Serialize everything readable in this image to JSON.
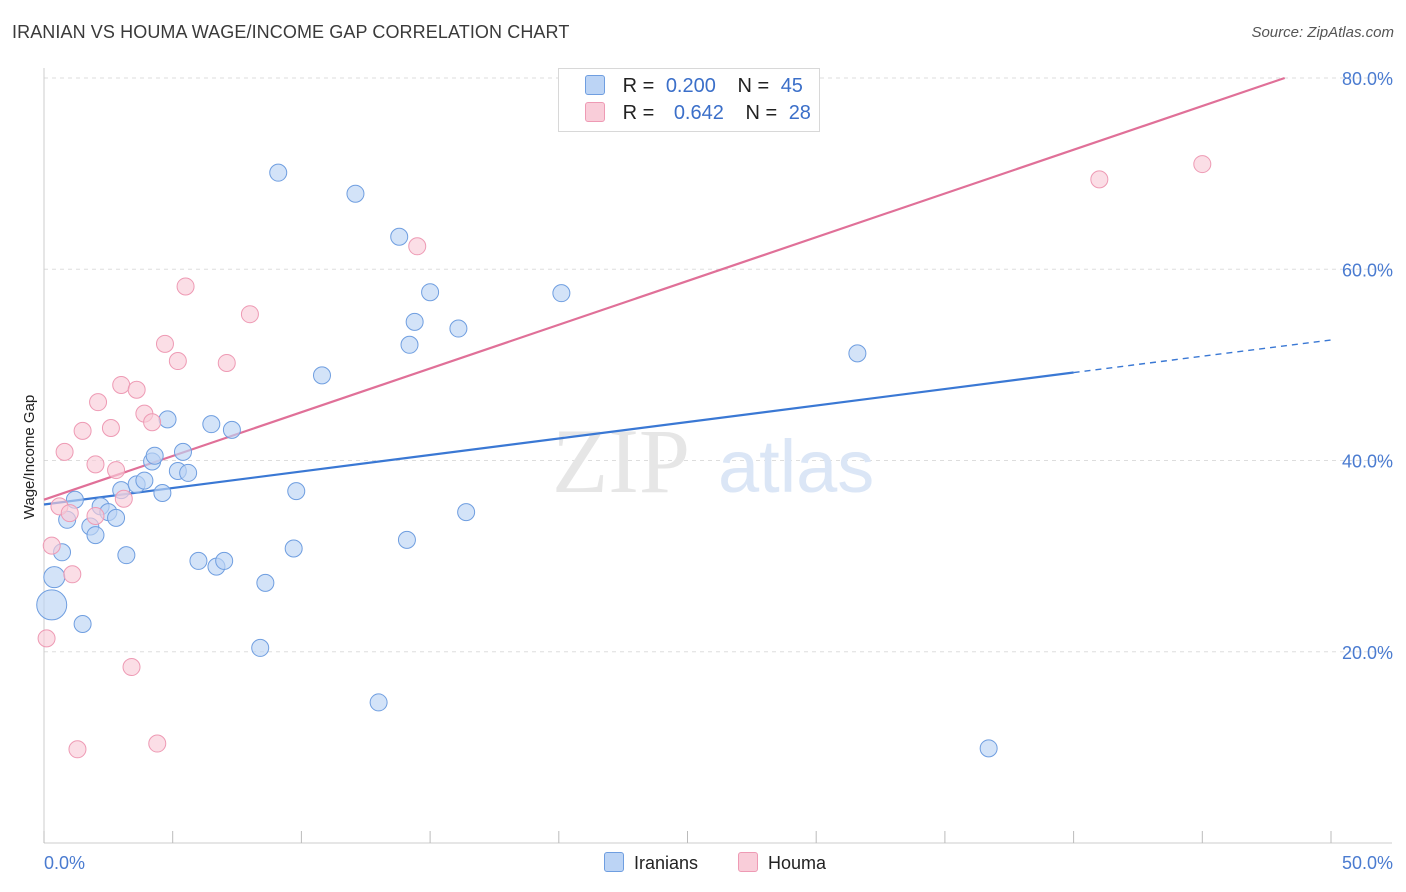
{
  "header": {
    "title": "IRANIAN VS HOUMA WAGE/INCOME GAP CORRELATION CHART",
    "source": "Source: ZipAtlas.com"
  },
  "watermark": {
    "zip": "ZIP",
    "atlas": "atlas"
  },
  "legend": {
    "rows": [
      {
        "r_label": "R =",
        "r_value": "0.200",
        "n_label": "N =",
        "n_value": "45"
      },
      {
        "r_label": "R =",
        "r_value": "0.642",
        "n_label": "N =",
        "n_value": "28"
      }
    ]
  },
  "bottom_legend": {
    "iranians": "Iranians",
    "houma": "Houma"
  },
  "colors": {
    "iranians_fill": "#bcd4f5",
    "iranians_stroke": "#6f9ee0",
    "iranians_line": "#3a78d4",
    "houma_fill": "#f9cdd9",
    "houma_stroke": "#ee9ab4",
    "houma_line": "#e07098",
    "tick_text": "#4a7bd0",
    "grid": "#dddddd"
  },
  "chart_data": {
    "type": "scatter",
    "title": "IRANIAN VS HOUMA WAGE/INCOME GAP CORRELATION CHART",
    "ylabel": "Wage/Income Gap",
    "xlim": [
      0,
      50
    ],
    "ylim": [
      0,
      80
    ],
    "x_tick_labels": [
      "0.0%",
      "50.0%"
    ],
    "y_ticks": [
      20,
      40,
      60,
      80
    ],
    "y_tick_labels": [
      "20.0%",
      "40.0%",
      "60.0%",
      "80.0%"
    ],
    "grid": true,
    "legend_position": "top-center",
    "series": [
      {
        "name": "Iranians",
        "r": 0.2,
        "n": 45,
        "trend": {
          "x0": 0,
          "y0": 35.4,
          "x1": 40,
          "y1": 49.2,
          "dash_to_x": 50,
          "dash_to_y": 52.6
        },
        "points": [
          [
            0.3,
            24.9
          ],
          [
            0.4,
            27.8
          ],
          [
            0.7,
            30.4
          ],
          [
            0.9,
            33.8
          ],
          [
            1.2,
            35.9
          ],
          [
            1.5,
            22.9
          ],
          [
            1.8,
            33.1
          ],
          [
            2.0,
            32.2
          ],
          [
            2.2,
            35.2
          ],
          [
            2.5,
            34.6
          ],
          [
            2.8,
            34.0
          ],
          [
            3.0,
            36.9
          ],
          [
            3.2,
            30.1
          ],
          [
            3.6,
            37.5
          ],
          [
            3.9,
            37.9
          ],
          [
            4.2,
            39.9
          ],
          [
            4.3,
            40.5
          ],
          [
            4.6,
            36.6
          ],
          [
            4.8,
            44.3
          ],
          [
            5.2,
            38.9
          ],
          [
            5.4,
            40.9
          ],
          [
            5.6,
            38.7
          ],
          [
            6.0,
            29.5
          ],
          [
            6.5,
            43.8
          ],
          [
            6.7,
            28.9
          ],
          [
            7.0,
            29.5
          ],
          [
            7.3,
            43.2
          ],
          [
            8.4,
            20.4
          ],
          [
            8.6,
            27.2
          ],
          [
            9.1,
            70.1
          ],
          [
            9.7,
            30.8
          ],
          [
            9.8,
            36.8
          ],
          [
            10.8,
            48.9
          ],
          [
            12.1,
            67.9
          ],
          [
            13.0,
            14.7
          ],
          [
            13.8,
            63.4
          ],
          [
            14.1,
            31.7
          ],
          [
            14.2,
            52.1
          ],
          [
            14.4,
            54.5
          ],
          [
            15.0,
            57.6
          ],
          [
            16.1,
            53.8
          ],
          [
            16.4,
            34.6
          ],
          [
            20.1,
            57.5
          ],
          [
            31.6,
            51.2
          ],
          [
            36.7,
            9.9
          ]
        ]
      },
      {
        "name": "Houma",
        "r": 0.642,
        "n": 28,
        "trend": {
          "x0": 0,
          "y0": 35.9,
          "x1": 48.2,
          "y1": 80.0
        },
        "points": [
          [
            0.1,
            21.4
          ],
          [
            0.3,
            31.1
          ],
          [
            0.6,
            35.2
          ],
          [
            0.8,
            40.9
          ],
          [
            1.0,
            34.5
          ],
          [
            1.1,
            28.1
          ],
          [
            1.3,
            9.8
          ],
          [
            1.5,
            43.1
          ],
          [
            2.0,
            34.2
          ],
          [
            2.0,
            39.6
          ],
          [
            2.1,
            46.1
          ],
          [
            2.6,
            43.4
          ],
          [
            2.8,
            39.0
          ],
          [
            3.0,
            47.9
          ],
          [
            3.1,
            36.0
          ],
          [
            3.4,
            18.4
          ],
          [
            3.6,
            47.4
          ],
          [
            3.9,
            44.9
          ],
          [
            4.2,
            44.0
          ],
          [
            4.4,
            10.4
          ],
          [
            4.7,
            52.2
          ],
          [
            5.2,
            50.4
          ],
          [
            5.5,
            58.2
          ],
          [
            7.1,
            50.2
          ],
          [
            8.0,
            55.3
          ],
          [
            14.5,
            62.4
          ],
          [
            41.0,
            69.4
          ],
          [
            45.0,
            71.0
          ]
        ]
      }
    ]
  }
}
